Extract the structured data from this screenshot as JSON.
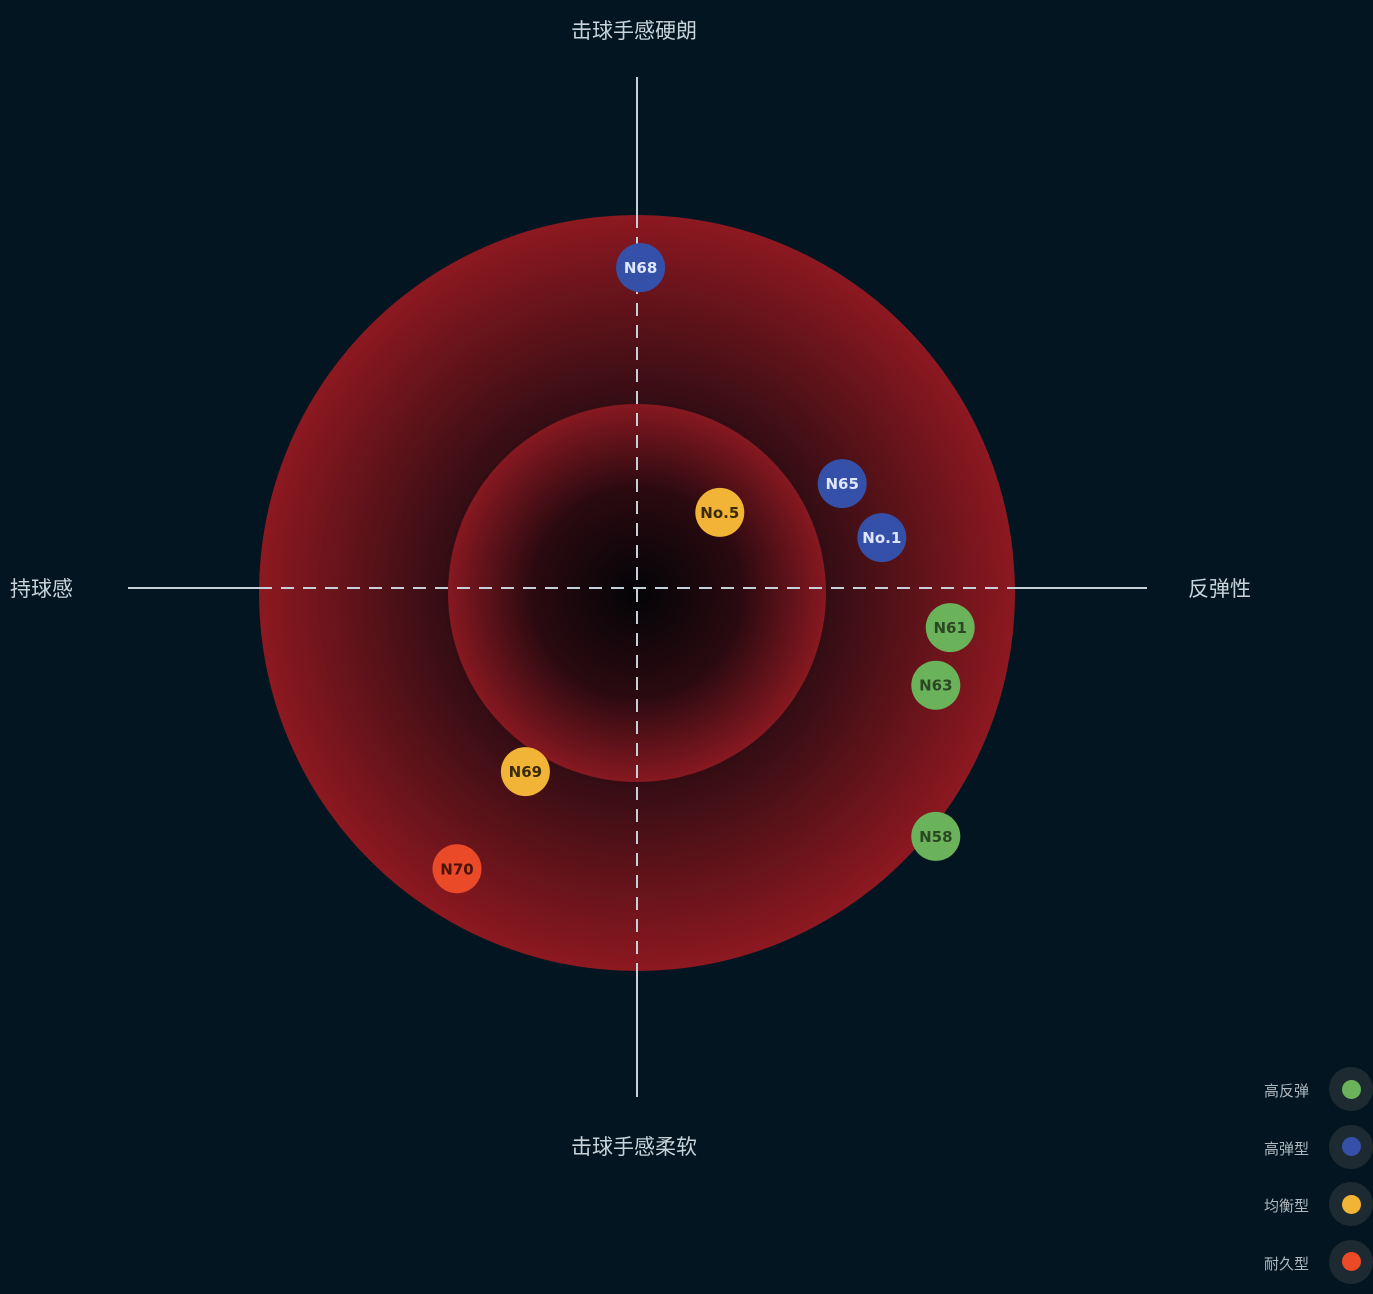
{
  "axes": {
    "top": "击球手感硬朗",
    "bottom": "击球手感柔软",
    "left": "持球感",
    "right": "反弹性"
  },
  "legend": [
    {
      "label": "高反弹",
      "color": "#6bb35a"
    },
    {
      "label": "高弹型",
      "color": "#3550a8"
    },
    {
      "label": "均衡型",
      "color": "#f2b436"
    },
    {
      "label": "耐久型",
      "color": "#ea4a28"
    }
  ],
  "chart_data": {
    "type": "scatter",
    "x_axis": {
      "negative": "持球感",
      "positive": "反弹性"
    },
    "y_axis": {
      "negative": "击球手感柔软",
      "positive": "击球手感硬朗"
    },
    "range": [
      -1,
      1
    ],
    "points": [
      {
        "label": "N68",
        "x": 0.01,
        "y": 0.89,
        "group": "高弹型"
      },
      {
        "label": "N65",
        "x": 0.57,
        "y": 0.29,
        "group": "高弹型"
      },
      {
        "label": "No.1",
        "x": 0.68,
        "y": 0.14,
        "group": "高弹型"
      },
      {
        "label": "No.5",
        "x": 0.23,
        "y": 0.21,
        "group": "均衡型"
      },
      {
        "label": "N61",
        "x": 0.87,
        "y": -0.11,
        "group": "高反弹"
      },
      {
        "label": "N63",
        "x": 0.83,
        "y": -0.27,
        "group": "高反弹"
      },
      {
        "label": "N58",
        "x": 0.83,
        "y": -0.69,
        "group": "高反弹"
      },
      {
        "label": "N69",
        "x": -0.31,
        "y": -0.51,
        "group": "均衡型"
      },
      {
        "label": "N70",
        "x": -0.5,
        "y": -0.78,
        "group": "耐久型"
      }
    ]
  }
}
